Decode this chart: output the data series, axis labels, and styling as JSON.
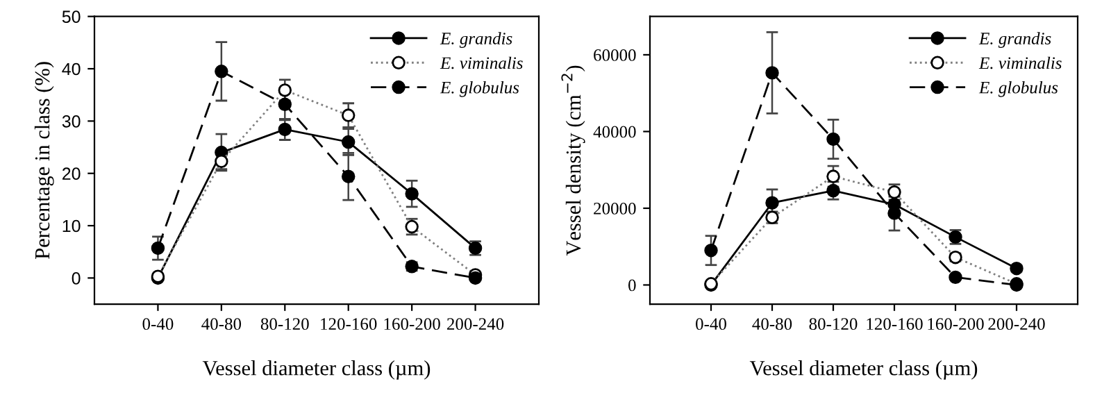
{
  "chart_data": [
    {
      "type": "line",
      "categories": [
        "0-40",
        "40-80",
        "80-120",
        "120-160",
        "160-200",
        "200-240"
      ],
      "xlabel": "Vessel diameter class (µm)",
      "ylabel": "Percentage in class (%)",
      "ylim": [
        -5,
        50
      ],
      "yticks": [
        0,
        10,
        20,
        30,
        40,
        50
      ],
      "grid": false,
      "legend": "top right",
      "marker": "circle",
      "series": [
        {
          "name": "E. grandis",
          "color": "#000000",
          "line_style": "solid",
          "values": [
            0,
            24.0,
            28.4,
            26.0,
            16.1,
            5.7
          ],
          "errors": [
            null,
            3.5,
            2,
            2.5,
            2.5,
            1.3
          ]
        },
        {
          "name": "E. viminalis",
          "color": "#808080",
          "line_style": "dotted",
          "values": [
            0.3,
            22.3,
            35.9,
            31.1,
            9.8,
            0.6
          ],
          "errors": [
            null,
            1.5,
            2,
            2.3,
            1.5,
            null
          ]
        },
        {
          "name": "E. globulus",
          "color": "#000000",
          "line_style": "dashed",
          "values": [
            5.7,
            39.5,
            33.2,
            19.4,
            2.2,
            0
          ],
          "errors": [
            2.2,
            5.6,
            3,
            4.5,
            0.8,
            null
          ]
        }
      ]
    },
    {
      "type": "line",
      "categories": [
        "0-40",
        "40-80",
        "80-120",
        "120-160",
        "160-200",
        "200-240"
      ],
      "xlabel": "Vessel diameter class (µm)",
      "ylabel": "Vessel density (cm$^{−2}$)",
      "ylim": [
        -5000,
        70000
      ],
      "yticks": [
        0,
        20000,
        40000,
        60000
      ],
      "grid": false,
      "legend": "top right",
      "marker": "circle",
      "series": [
        {
          "name": "E. grandis",
          "color": "#000000",
          "line_style": "solid",
          "values": [
            0,
            21400,
            24600,
            21000,
            12500,
            4300
          ],
          "errors": [
            null,
            3500,
            2300,
            2000,
            1800,
            800
          ]
        },
        {
          "name": "E. viminalis",
          "color": "#808080",
          "line_style": "dotted",
          "values": [
            300,
            17600,
            28300,
            24200,
            7200,
            300
          ],
          "errors": [
            null,
            1500,
            2700,
            2000,
            1000,
            null
          ]
        },
        {
          "name": "E. globulus",
          "color": "#000000",
          "line_style": "dashed",
          "values": [
            9000,
            55300,
            38000,
            18700,
            2000,
            0
          ],
          "errors": [
            3800,
            10600,
            5100,
            4500,
            500,
            null
          ]
        }
      ]
    }
  ]
}
